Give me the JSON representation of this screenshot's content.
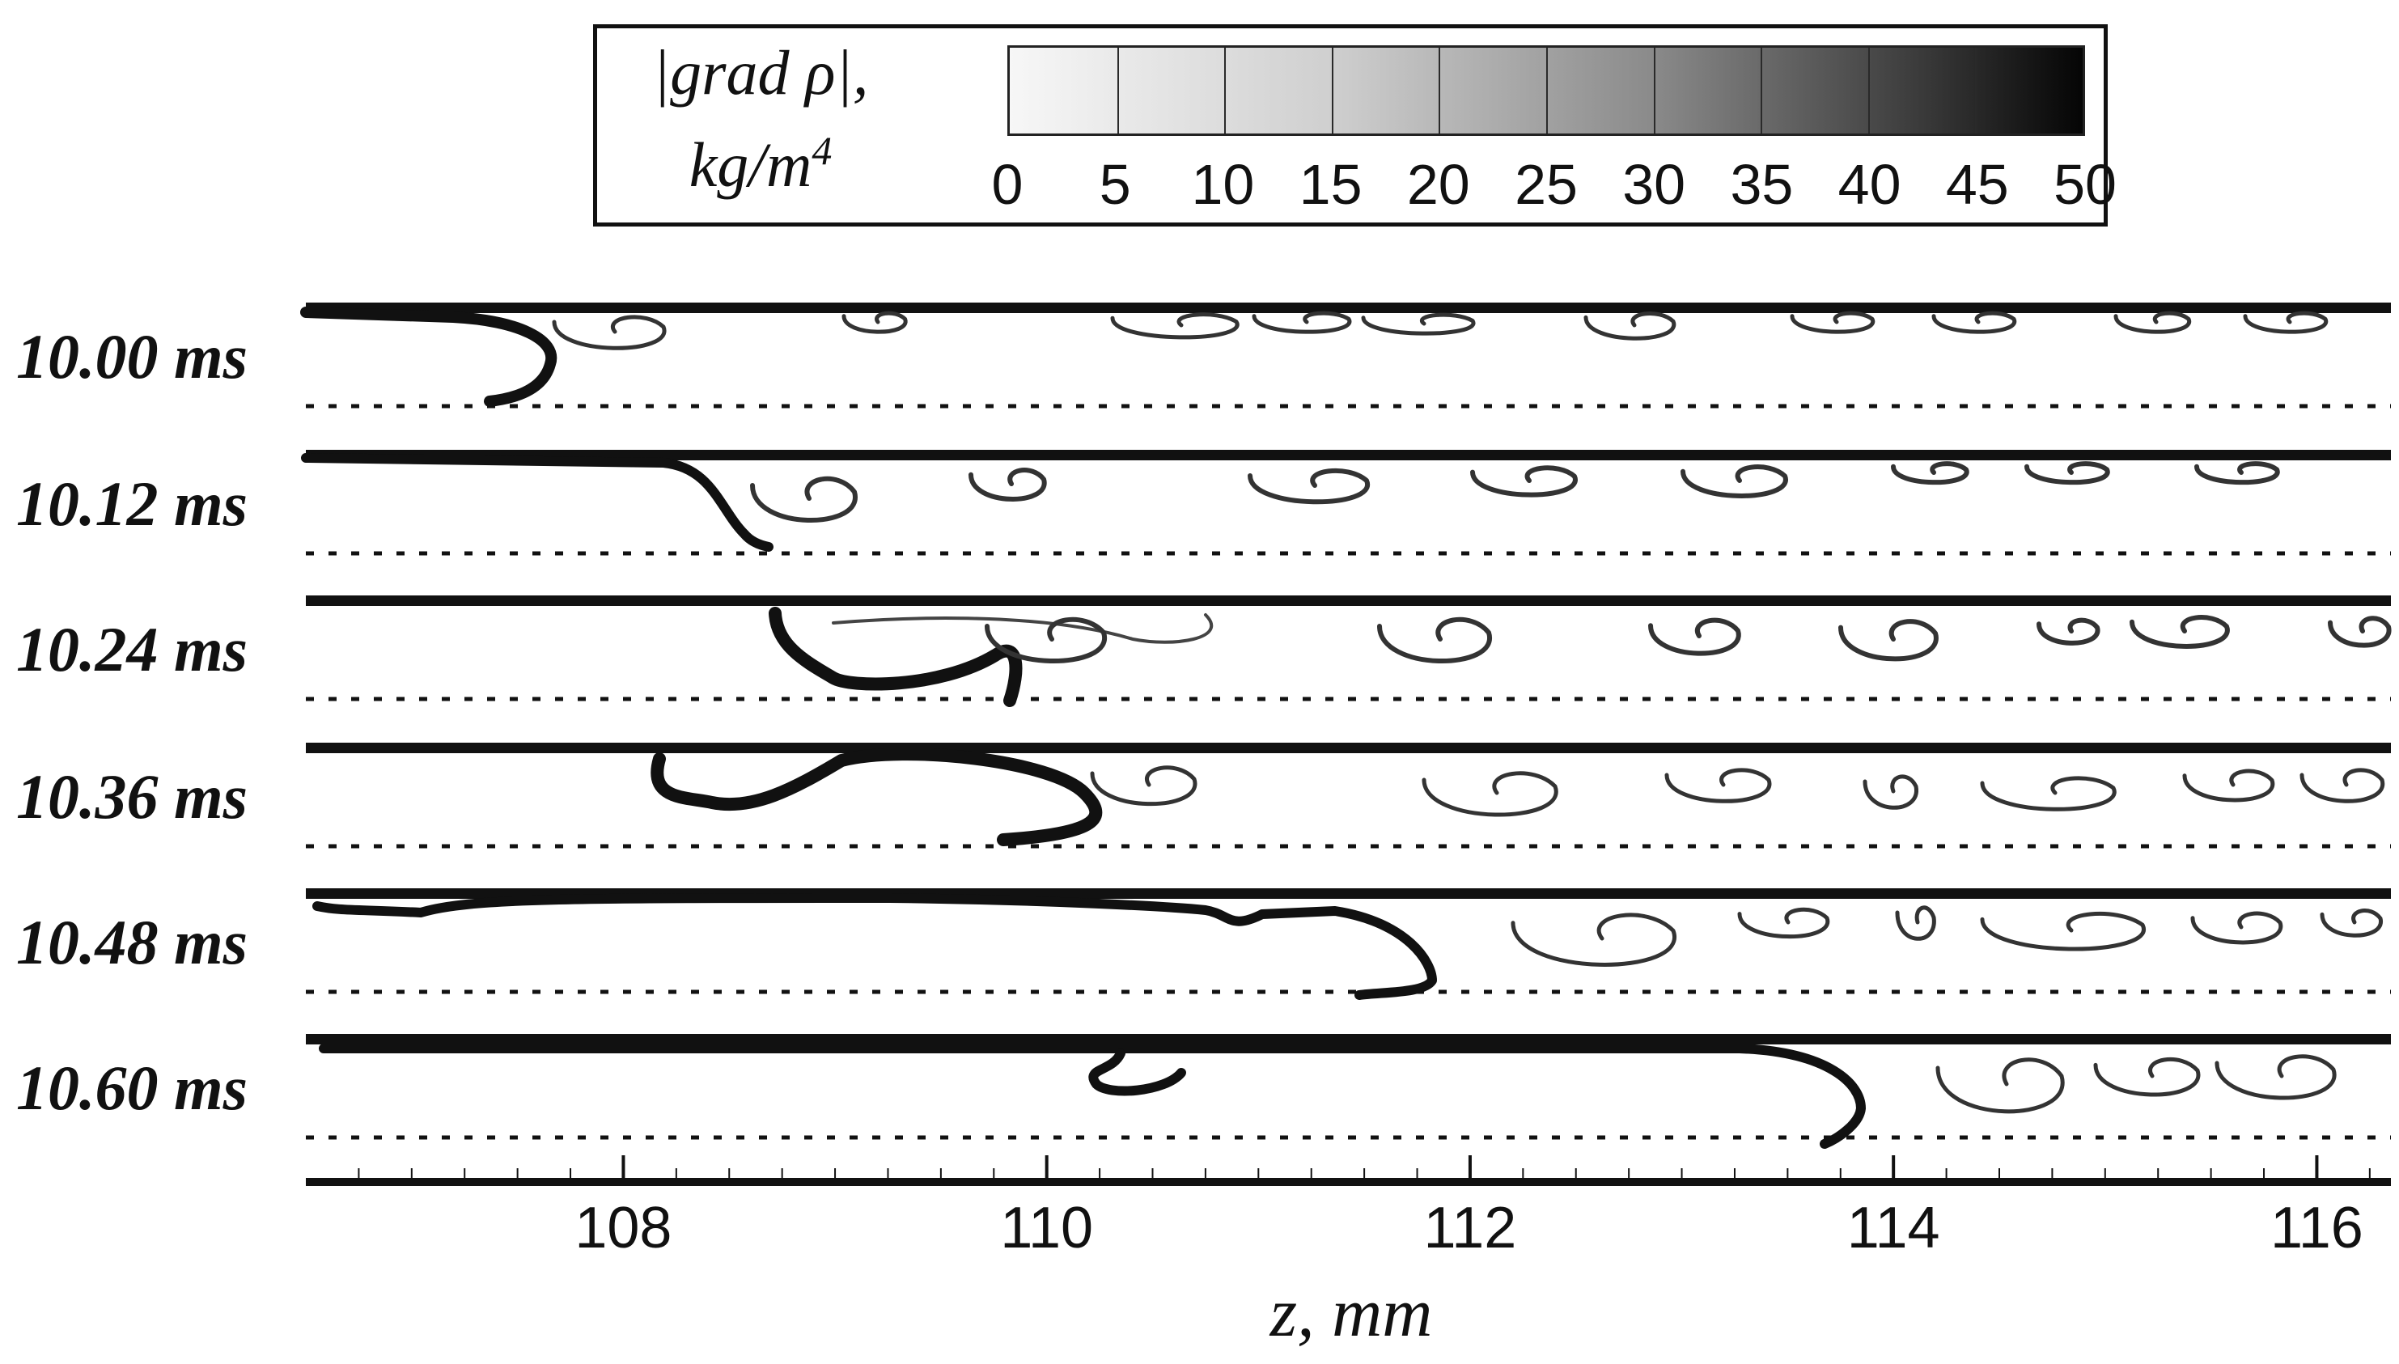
{
  "legend": {
    "quantity": "|grad ρ|,",
    "unit_base": "kg/m",
    "unit_exp": "4",
    "ticks": [
      "0",
      "5",
      "10",
      "15",
      "20",
      "25",
      "30",
      "35",
      "40",
      "45",
      "50"
    ],
    "colormap": "white-to-black grayscale",
    "range": [
      0,
      50
    ]
  },
  "panels": [
    {
      "time": "10.00 ms"
    },
    {
      "time": "10.12 ms"
    },
    {
      "time": "10.24 ms"
    },
    {
      "time": "10.36 ms"
    },
    {
      "time": "10.48 ms"
    },
    {
      "time": "10.60 ms"
    }
  ],
  "x_axis": {
    "title": "z, mm",
    "ticks": [
      "108",
      "110",
      "112",
      "114",
      "116"
    ],
    "range": [
      106.5,
      116.35
    ]
  },
  "colors": {
    "ink": "#111111",
    "background": "#ffffff"
  }
}
